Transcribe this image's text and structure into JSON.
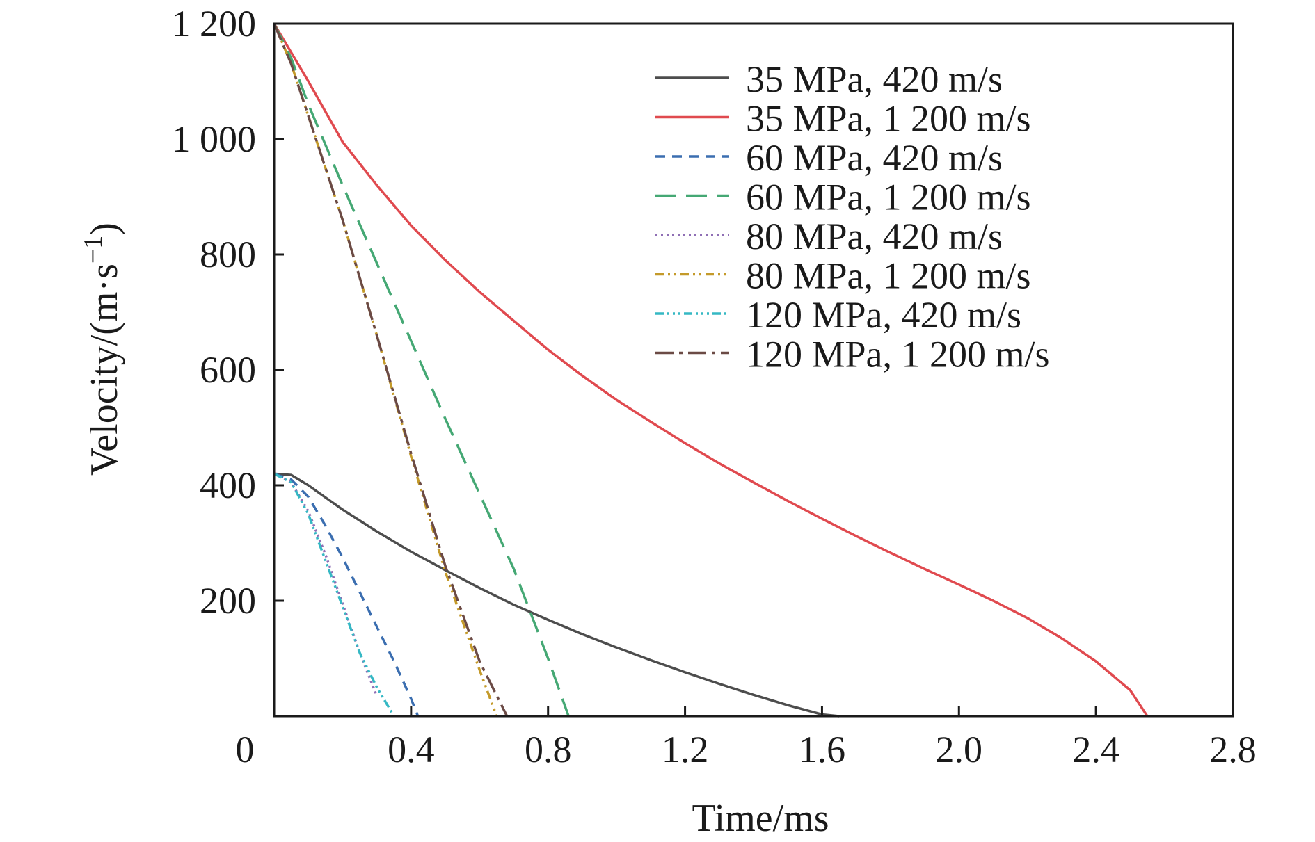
{
  "chart_data": {
    "type": "line",
    "title": "",
    "xlabel": "Time/ms",
    "ylabel_parts": {
      "main": "Velocity/(m·s",
      "superscript": "−1",
      "close": ")"
    },
    "xlim": [
      0,
      2.8
    ],
    "ylim": [
      0,
      1200
    ],
    "x_ticks": [
      0,
      0.4,
      0.8,
      1.2,
      1.6,
      2.0,
      2.4,
      2.8
    ],
    "x_tick_labels": [
      "0",
      "0.4",
      "0.8",
      "1.2",
      "1.6",
      "2.0",
      "2.4",
      "2.8"
    ],
    "y_ticks": [
      200,
      400,
      600,
      800,
      1000,
      1200
    ],
    "y_tick_labels": [
      "200",
      "400",
      "600",
      "800",
      "1 000",
      "1 200"
    ],
    "grid": false,
    "legend_position": "top-right",
    "series": [
      {
        "name": "35 MPa, 420 m/s",
        "color": "#4d4d4d",
        "dash": "solid",
        "x": [
          0,
          0.05,
          0.1,
          0.2,
          0.3,
          0.4,
          0.5,
          0.6,
          0.7,
          0.8,
          0.9,
          1.0,
          1.1,
          1.2,
          1.3,
          1.4,
          1.5,
          1.6,
          1.65
        ],
        "y": [
          420,
          418,
          400,
          358,
          320,
          285,
          253,
          222,
          193,
          167,
          142,
          119,
          97,
          76,
          56,
          37,
          19,
          3,
          0
        ]
      },
      {
        "name": "35 MPa, 1 200 m/s",
        "color": "#e04a4f",
        "dash": "solid",
        "x": [
          0,
          0.1,
          0.2,
          0.3,
          0.4,
          0.5,
          0.6,
          0.7,
          0.8,
          0.9,
          1.0,
          1.1,
          1.2,
          1.3,
          1.4,
          1.5,
          1.6,
          1.7,
          1.8,
          1.9,
          2.0,
          2.1,
          2.2,
          2.3,
          2.4,
          2.5,
          2.55
        ],
        "y": [
          1200,
          1100,
          995,
          920,
          850,
          790,
          735,
          685,
          635,
          590,
          548,
          510,
          473,
          438,
          405,
          373,
          342,
          312,
          283,
          255,
          228,
          200,
          170,
          135,
          95,
          45,
          0
        ]
      },
      {
        "name": "60 MPa, 420 m/s",
        "color": "#3b6eb0",
        "dash": "14,10",
        "x": [
          0,
          0.05,
          0.1,
          0.15,
          0.2,
          0.25,
          0.3,
          0.35,
          0.4,
          0.42
        ],
        "y": [
          420,
          410,
          380,
          330,
          275,
          215,
          155,
          95,
          30,
          0
        ]
      },
      {
        "name": "60 MPa, 1 200 m/s",
        "color": "#45a874",
        "dash": "30,14",
        "x": [
          0,
          0.05,
          0.1,
          0.2,
          0.3,
          0.4,
          0.5,
          0.6,
          0.7,
          0.8,
          0.86
        ],
        "y": [
          1200,
          1140,
          1060,
          920,
          785,
          650,
          515,
          385,
          255,
          100,
          0
        ]
      },
      {
        "name": "80 MPa, 420 m/s",
        "color": "#8f6fb5",
        "dash": "3,5",
        "x": [
          0,
          0.05,
          0.1,
          0.15,
          0.2,
          0.25,
          0.3
        ],
        "y": [
          420,
          405,
          355,
          280,
          195,
          110,
          35
        ]
      },
      {
        "name": "80 MPa, 1 200 m/s",
        "color": "#c49a2a",
        "dash": "12,6,3,6,3,6",
        "x": [
          0,
          0.05,
          0.1,
          0.2,
          0.3,
          0.4,
          0.5,
          0.6,
          0.65
        ],
        "y": [
          1200,
          1130,
          1040,
          860,
          660,
          450,
          250,
          80,
          0
        ]
      },
      {
        "name": "120 MPa, 420 m/s",
        "color": "#35b8c4",
        "dash": "12,5,3,5,3,5,3,5",
        "x": [
          0,
          0.05,
          0.1,
          0.15,
          0.2,
          0.25,
          0.3,
          0.35
        ],
        "y": [
          420,
          405,
          350,
          270,
          190,
          110,
          50,
          0
        ]
      },
      {
        "name": "120 MPa, 1 200 m/s",
        "color": "#6b4a45",
        "dash": "26,8,5,8",
        "x": [
          0,
          0.05,
          0.1,
          0.2,
          0.3,
          0.4,
          0.5,
          0.6,
          0.68
        ],
        "y": [
          1200,
          1130,
          1040,
          860,
          660,
          455,
          260,
          95,
          0
        ]
      }
    ]
  }
}
